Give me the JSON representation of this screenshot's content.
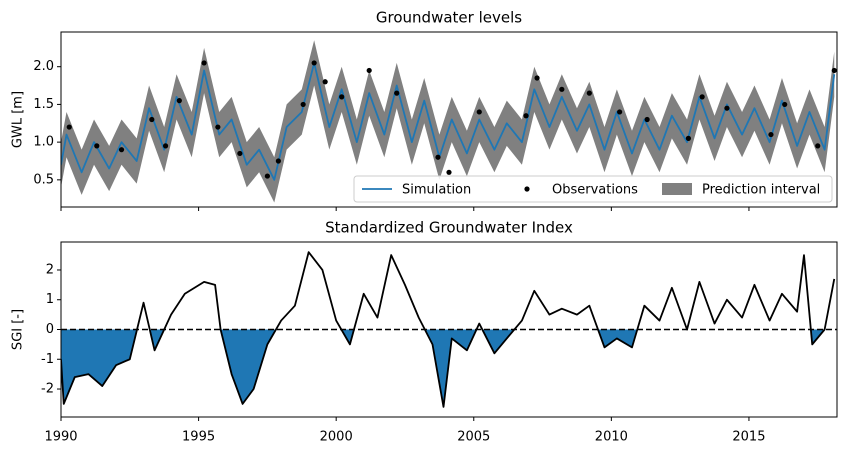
{
  "chart_data": [
    {
      "type": "line",
      "title": "Groundwater levels",
      "y_label": "GWL [m]",
      "xlim": [
        1990,
        2018.2
      ],
      "ylim": [
        0.14,
        2.46
      ],
      "yticks": [
        0.5,
        {
          "value": 1.0,
          "label": "1.0"
        },
        1.5,
        {
          "value": 2.0,
          "label": "2.0"
        }
      ],
      "legend": "lower right",
      "x": [
        1990,
        1990.2,
        1990.75,
        1991.2,
        1991.75,
        1992.2,
        1992.75,
        1993.2,
        1993.75,
        1994.2,
        1994.75,
        1995.2,
        1995.75,
        1996.2,
        1996.75,
        1997.2,
        1997.75,
        1998.2,
        1998.75,
        1999.2,
        1999.75,
        2000.2,
        2000.75,
        2001.2,
        2001.75,
        2002.2,
        2002.75,
        2003.2,
        2003.75,
        2004.2,
        2004.75,
        2005.2,
        2005.75,
        2006.2,
        2006.75,
        2007.2,
        2007.75,
        2008.2,
        2008.75,
        2009.2,
        2009.75,
        2010.2,
        2010.75,
        2011.2,
        2011.75,
        2012.2,
        2012.75,
        2013.2,
        2013.75,
        2014.2,
        2014.75,
        2015.2,
        2015.75,
        2016.2,
        2016.75,
        2017.2,
        2017.75,
        2018.1
      ],
      "interval": {
        "name": "Prediction interval",
        "color": "#808080",
        "lower": [
          0.4,
          0.8,
          0.3,
          0.7,
          0.35,
          0.7,
          0.45,
          1.15,
          0.6,
          1.3,
          0.8,
          1.65,
          0.8,
          1.0,
          0.4,
          0.6,
          0.2,
          0.9,
          1.1,
          1.75,
          0.9,
          1.4,
          0.7,
          1.35,
          0.8,
          1.45,
          0.7,
          1.25,
          0.5,
          1.0,
          0.55,
          1.0,
          0.6,
          0.95,
          0.7,
          1.4,
          0.9,
          1.3,
          0.85,
          1.2,
          0.6,
          1.1,
          0.55,
          1.0,
          0.6,
          1.05,
          0.7,
          1.3,
          0.75,
          1.2,
          0.8,
          1.15,
          0.7,
          1.25,
          0.65,
          1.1,
          0.6,
          1.6
        ],
        "upper": [
          1.0,
          1.4,
          0.9,
          1.3,
          0.95,
          1.3,
          1.05,
          1.75,
          1.2,
          1.9,
          1.4,
          2.25,
          1.4,
          1.6,
          1.0,
          1.2,
          0.8,
          1.5,
          1.7,
          2.35,
          1.5,
          2.0,
          1.3,
          1.95,
          1.4,
          2.05,
          1.3,
          1.85,
          1.1,
          1.6,
          1.15,
          1.6,
          1.2,
          1.55,
          1.3,
          2.0,
          1.5,
          1.9,
          1.45,
          1.8,
          1.2,
          1.7,
          1.15,
          1.6,
          1.2,
          1.65,
          1.3,
          1.9,
          1.35,
          1.8,
          1.4,
          1.75,
          1.3,
          1.85,
          1.25,
          1.7,
          1.2,
          2.2
        ]
      },
      "series": [
        {
          "name": "Simulation",
          "color": "#1f77b4",
          "style": "line",
          "values": [
            0.7,
            1.1,
            0.6,
            1.0,
            0.65,
            1.0,
            0.75,
            1.45,
            0.9,
            1.6,
            1.1,
            1.95,
            1.1,
            1.3,
            0.7,
            0.9,
            0.5,
            1.2,
            1.4,
            2.05,
            1.2,
            1.7,
            1.0,
            1.65,
            1.1,
            1.75,
            1.0,
            1.55,
            0.8,
            1.3,
            0.85,
            1.3,
            0.9,
            1.25,
            1.0,
            1.7,
            1.2,
            1.6,
            1.15,
            1.5,
            0.9,
            1.4,
            0.85,
            1.3,
            0.9,
            1.35,
            1.0,
            1.6,
            1.05,
            1.5,
            1.1,
            1.45,
            1.0,
            1.55,
            0.95,
            1.4,
            0.9,
            1.9
          ]
        },
        {
          "name": "Observations",
          "color": "#000000",
          "style": "points",
          "x": [
            1990.3,
            1991.3,
            1992.2,
            1993.3,
            1993.8,
            1994.3,
            1995.2,
            1995.7,
            1996.5,
            1997.5,
            1997.9,
            1998.8,
            1999.2,
            1999.6,
            2000.2,
            2001.2,
            2002.2,
            2003.7,
            2004.1,
            2005.2,
            2006.9,
            2007.3,
            2008.2,
            2009.2,
            2010.3,
            2011.3,
            2012.8,
            2013.3,
            2014.2,
            2015.8,
            2016.3,
            2017.5,
            2018.1
          ],
          "values": [
            1.2,
            0.95,
            0.9,
            1.3,
            0.95,
            1.55,
            2.05,
            1.2,
            0.85,
            0.55,
            0.75,
            1.5,
            2.05,
            1.8,
            1.6,
            1.95,
            1.65,
            0.8,
            0.6,
            1.4,
            1.35,
            1.85,
            1.7,
            1.65,
            1.4,
            1.3,
            1.05,
            1.6,
            1.45,
            1.1,
            1.5,
            0.95,
            1.95
          ]
        }
      ]
    },
    {
      "type": "line",
      "title": "Standardized Groundwater Index",
      "y_label": "SGI [-]",
      "xlim": [
        1990,
        2018.2
      ],
      "ylim": [
        -2.94,
        2.94
      ],
      "xticks": [
        1990,
        1995,
        2000,
        2005,
        2010,
        2015
      ],
      "yticks": [
        -2,
        -1,
        0,
        1,
        2
      ],
      "hline": 0,
      "series": [
        {
          "color": "#000000",
          "fill_negative": "#1f77b4",
          "style": "line",
          "x": [
            1990.0,
            1990.1,
            1990.5,
            1991.0,
            1991.5,
            1992.0,
            1992.5,
            1993.0,
            1993.4,
            1994.0,
            1994.5,
            1995.2,
            1995.6,
            1995.8,
            1996.2,
            1996.6,
            1997.0,
            1997.5,
            1998.0,
            1998.5,
            1999.0,
            1999.5,
            2000.0,
            2000.5,
            2001.0,
            2001.5,
            2002.0,
            2002.5,
            2003.0,
            2003.5,
            2003.9,
            2004.2,
            2004.75,
            2005.2,
            2005.75,
            2006.2,
            2006.75,
            2007.2,
            2007.75,
            2008.2,
            2008.75,
            2009.2,
            2009.75,
            2010.2,
            2010.75,
            2011.2,
            2011.75,
            2012.2,
            2012.75,
            2013.2,
            2013.75,
            2014.2,
            2014.75,
            2015.2,
            2015.75,
            2016.2,
            2016.75,
            2017.0,
            2017.3,
            2017.75,
            2018.1
          ],
          "values": [
            -1.0,
            -2.5,
            -1.6,
            -1.5,
            -1.9,
            -1.2,
            -1.0,
            0.9,
            -0.7,
            0.5,
            1.2,
            1.6,
            1.5,
            0.0,
            -1.5,
            -2.5,
            -2.0,
            -0.5,
            0.3,
            0.8,
            2.6,
            2.0,
            0.3,
            -0.5,
            1.2,
            0.4,
            2.5,
            1.5,
            0.4,
            -0.5,
            -2.6,
            -0.3,
            -0.7,
            0.2,
            -0.8,
            -0.3,
            0.3,
            1.3,
            0.5,
            0.7,
            0.5,
            0.8,
            -0.6,
            -0.3,
            -0.6,
            0.8,
            0.3,
            1.4,
            0.0,
            1.6,
            0.2,
            1.0,
            0.4,
            1.5,
            0.3,
            1.2,
            0.6,
            2.5,
            -0.5,
            0.0,
            1.7
          ]
        }
      ]
    }
  ]
}
